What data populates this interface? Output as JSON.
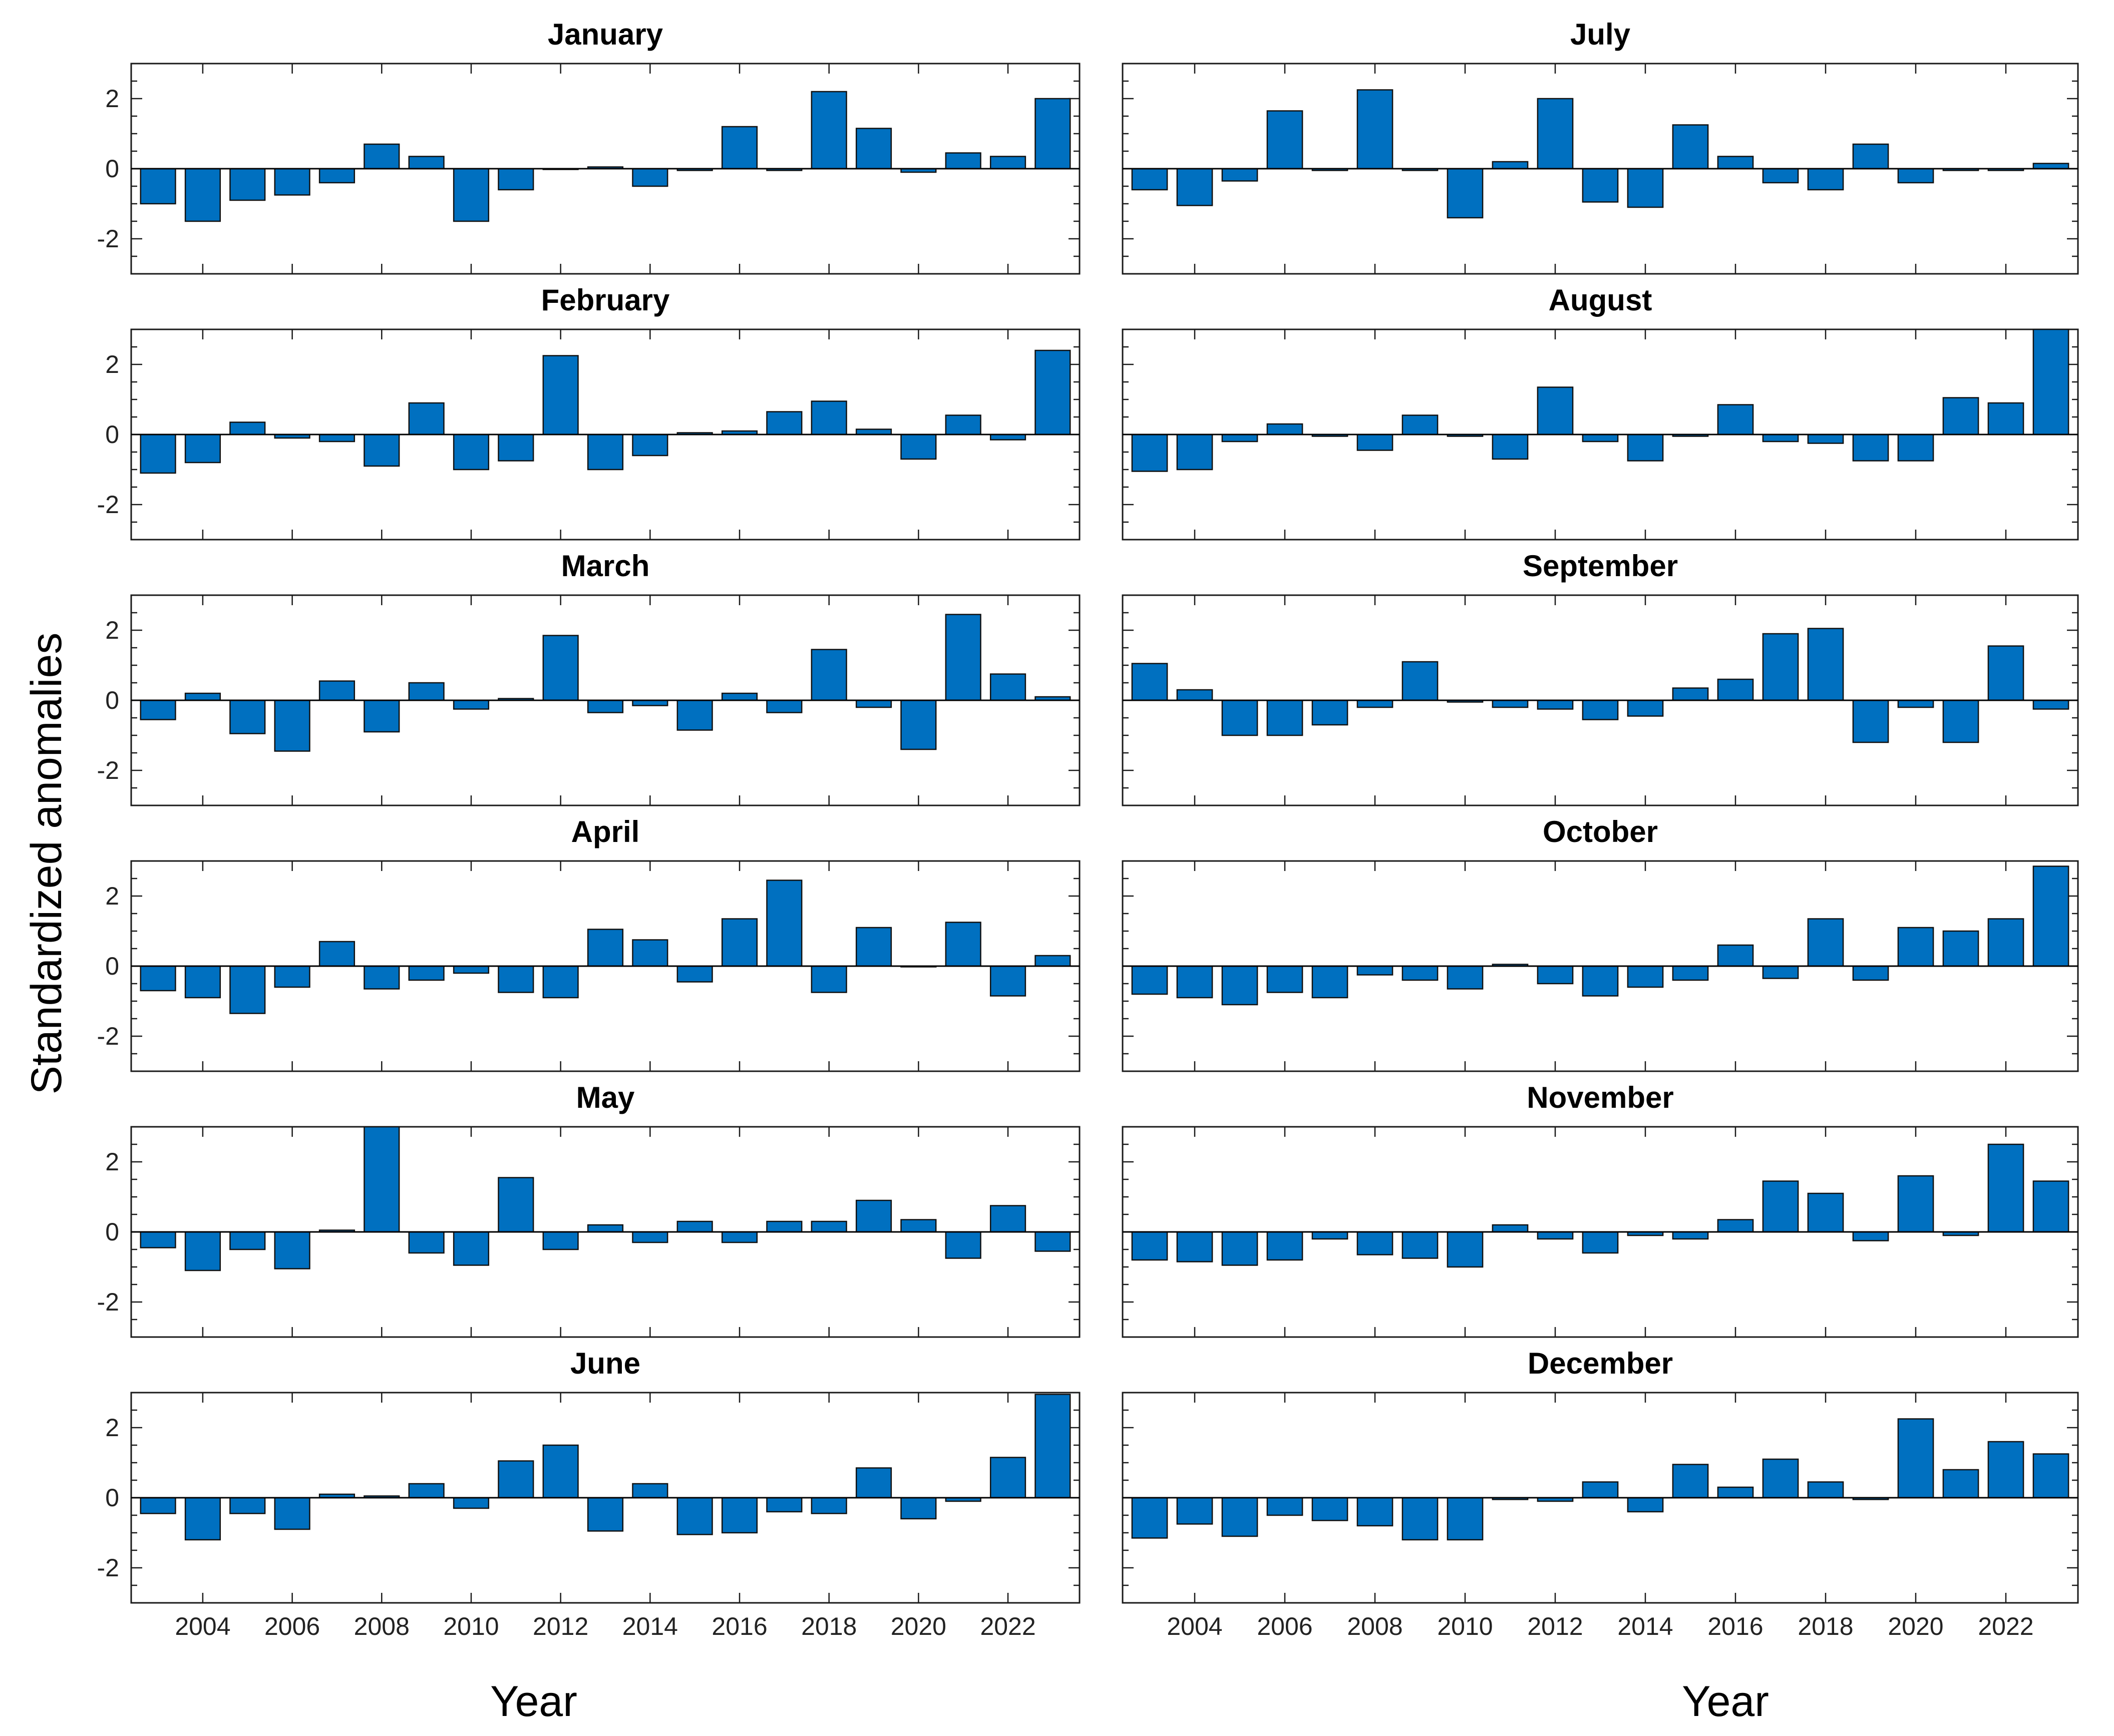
{
  "chart_data": {
    "type": "bar",
    "ylabel": "Standardized anomalies",
    "xlabel": "Year",
    "ylim": [
      -3,
      3
    ],
    "yticks": [
      -2,
      0,
      2
    ],
    "xlim": [
      2002.4,
      2023.6
    ],
    "x": [
      2003,
      2004,
      2005,
      2006,
      2007,
      2008,
      2009,
      2010,
      2011,
      2012,
      2013,
      2014,
      2015,
      2016,
      2017,
      2018,
      2019,
      2020,
      2021,
      2022,
      2023
    ],
    "xtick_labels": [
      "2004",
      "2006",
      "2008",
      "2010",
      "2012",
      "2014",
      "2016",
      "2018",
      "2020",
      "2022"
    ],
    "xtick_values": [
      2004,
      2006,
      2008,
      2010,
      2012,
      2014,
      2016,
      2018,
      2020,
      2022
    ],
    "bar_color": "#0070C0",
    "series": [
      {
        "name": "January",
        "values": [
          -1.0,
          -1.5,
          -0.9,
          -0.75,
          -0.4,
          0.7,
          0.35,
          -1.5,
          -0.6,
          0.0,
          0.05,
          -0.5,
          -0.05,
          1.2,
          -0.05,
          2.2,
          1.15,
          -0.1,
          0.45,
          0.35,
          2.0
        ]
      },
      {
        "name": "February",
        "values": [
          -1.1,
          -0.8,
          0.35,
          -0.1,
          -0.2,
          -0.9,
          0.9,
          -1.0,
          -0.75,
          2.25,
          -1.0,
          -0.6,
          0.05,
          0.1,
          0.65,
          0.95,
          0.15,
          -0.7,
          0.55,
          -0.15,
          2.4
        ]
      },
      {
        "name": "March",
        "values": [
          -0.55,
          0.2,
          -0.95,
          -1.45,
          0.55,
          -0.9,
          0.5,
          -0.25,
          0.05,
          1.85,
          -0.35,
          -0.15,
          -0.85,
          0.2,
          -0.35,
          1.45,
          -0.2,
          -1.4,
          2.45,
          0.75,
          0.1
        ]
      },
      {
        "name": "April",
        "values": [
          -0.7,
          -0.9,
          -1.35,
          -0.6,
          0.7,
          -0.65,
          -0.4,
          -0.2,
          -0.75,
          -0.9,
          1.05,
          0.75,
          -0.45,
          1.35,
          2.45,
          -0.75,
          1.1,
          0.0,
          1.25,
          -0.85,
          0.3
        ]
      },
      {
        "name": "May",
        "values": [
          -0.45,
          -1.1,
          -0.5,
          -1.05,
          0.05,
          3.0,
          -0.6,
          -0.95,
          1.55,
          -0.5,
          0.2,
          -0.3,
          0.3,
          -0.3,
          0.3,
          0.3,
          0.9,
          0.35,
          -0.75,
          0.75,
          -0.55
        ]
      },
      {
        "name": "June",
        "values": [
          -0.45,
          -1.2,
          -0.45,
          -0.9,
          0.1,
          0.05,
          0.4,
          -0.3,
          1.05,
          1.5,
          -0.95,
          0.4,
          -1.05,
          -1.0,
          -0.4,
          -0.45,
          0.85,
          -0.6,
          -0.1,
          1.15,
          2.95
        ]
      },
      {
        "name": "July",
        "values": [
          -0.6,
          -1.05,
          -0.35,
          1.65,
          -0.05,
          2.25,
          -0.05,
          -1.4,
          0.2,
          2.0,
          -0.95,
          -1.1,
          1.25,
          0.35,
          -0.4,
          -0.6,
          0.7,
          -0.4,
          -0.05,
          -0.05,
          0.15
        ]
      },
      {
        "name": "August",
        "values": [
          -1.05,
          -1.0,
          -0.2,
          0.3,
          -0.05,
          -0.45,
          0.55,
          -0.05,
          -0.7,
          1.35,
          -0.2,
          -0.75,
          -0.05,
          0.85,
          -0.2,
          -0.25,
          -0.75,
          -0.75,
          1.05,
          0.9,
          3.0
        ]
      },
      {
        "name": "September",
        "values": [
          1.05,
          0.3,
          -1.0,
          -1.0,
          -0.7,
          -0.2,
          1.1,
          -0.05,
          -0.2,
          -0.25,
          -0.55,
          -0.45,
          0.35,
          0.6,
          1.9,
          2.05,
          -1.2,
          -0.2,
          -1.2,
          1.55,
          -0.25
        ]
      },
      {
        "name": "October",
        "values": [
          -0.8,
          -0.9,
          -1.1,
          -0.75,
          -0.9,
          -0.25,
          -0.4,
          -0.65,
          0.05,
          -0.5,
          -0.85,
          -0.6,
          -0.4,
          0.6,
          -0.35,
          1.35,
          -0.4,
          1.1,
          1.0,
          1.35,
          2.85
        ]
      },
      {
        "name": "November",
        "values": [
          -0.8,
          -0.85,
          -0.95,
          -0.8,
          -0.2,
          -0.65,
          -0.75,
          -1.0,
          0.2,
          -0.2,
          -0.6,
          -0.1,
          -0.2,
          0.35,
          1.45,
          1.1,
          -0.25,
          1.6,
          -0.1,
          2.5,
          1.45
        ]
      },
      {
        "name": "December",
        "values": [
          -1.15,
          -0.75,
          -1.1,
          -0.5,
          -0.65,
          -0.8,
          -1.2,
          -1.2,
          -0.05,
          -0.1,
          0.45,
          -0.4,
          0.95,
          0.3,
          1.1,
          0.45,
          -0.05,
          2.25,
          0.8,
          1.6,
          1.25
        ]
      }
    ]
  }
}
